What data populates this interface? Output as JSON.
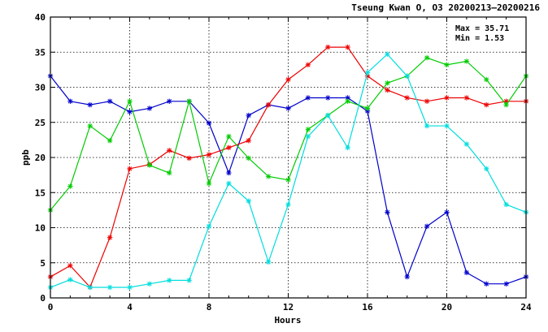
{
  "chart_data": {
    "type": "line",
    "title": "Tseung Kwan O, O3 20200213–20200216",
    "xlabel": "Hours",
    "ylabel": "ppb",
    "xlim": [
      0,
      24
    ],
    "ylim": [
      0,
      40
    ],
    "x_ticks": [
      0,
      4,
      8,
      12,
      16,
      20,
      24
    ],
    "x_tick_labels": [
      "0",
      "4",
      "8",
      "12",
      "16",
      "20",
      "24"
    ],
    "y_ticks": [
      0,
      5,
      10,
      15,
      20,
      25,
      30,
      35,
      40
    ],
    "y_tick_labels": [
      "0",
      "5",
      "10",
      "15",
      "20",
      "25",
      "30",
      "35",
      "40"
    ],
    "grid": true,
    "annotations": [
      "Max = 35.71",
      "Min =  1.53"
    ],
    "marker": "asterisk",
    "x": [
      0,
      1,
      2,
      3,
      4,
      5,
      6,
      7,
      8,
      9,
      10,
      11,
      12,
      13,
      14,
      15,
      16,
      17,
      18,
      19,
      20,
      21,
      22,
      23,
      24
    ],
    "series": [
      {
        "color": "#0000cc",
        "values": [
          31.6,
          28.0,
          27.5,
          28.0,
          26.5,
          27.0,
          28.0,
          28.0,
          24.9,
          17.8,
          26.0,
          27.5,
          27.0,
          28.5,
          28.5,
          28.5,
          26.6,
          12.2,
          3.0,
          10.2,
          12.2,
          3.6,
          2.0,
          2.0,
          3.0
        ]
      },
      {
        "color": "#ee0000",
        "values": [
          3.0,
          4.6,
          1.53,
          8.6,
          18.4,
          19.0,
          21.0,
          19.9,
          20.4,
          21.4,
          22.4,
          27.5,
          31.1,
          33.2,
          35.71,
          35.71,
          31.6,
          29.6,
          28.5,
          28.0,
          28.5,
          28.5,
          27.5,
          28.0,
          28.0
        ]
      },
      {
        "color": "#00cc00",
        "values": [
          12.5,
          15.9,
          24.5,
          22.4,
          28.0,
          18.9,
          17.8,
          28.0,
          16.3,
          23.0,
          19.9,
          17.3,
          16.8,
          24.0,
          26.0,
          28.0,
          27.0,
          30.6,
          31.6,
          34.2,
          33.2,
          33.7,
          31.1,
          27.5,
          31.6
        ]
      },
      {
        "color": "#00dddd",
        "values": [
          1.5,
          2.6,
          1.5,
          1.5,
          1.5,
          2.0,
          2.5,
          2.5,
          10.2,
          16.3,
          13.8,
          5.1,
          13.3,
          23.0,
          26.0,
          21.4,
          32.1,
          34.7,
          31.6,
          24.5,
          24.5,
          21.9,
          18.4,
          13.3,
          12.2
        ]
      }
    ]
  }
}
